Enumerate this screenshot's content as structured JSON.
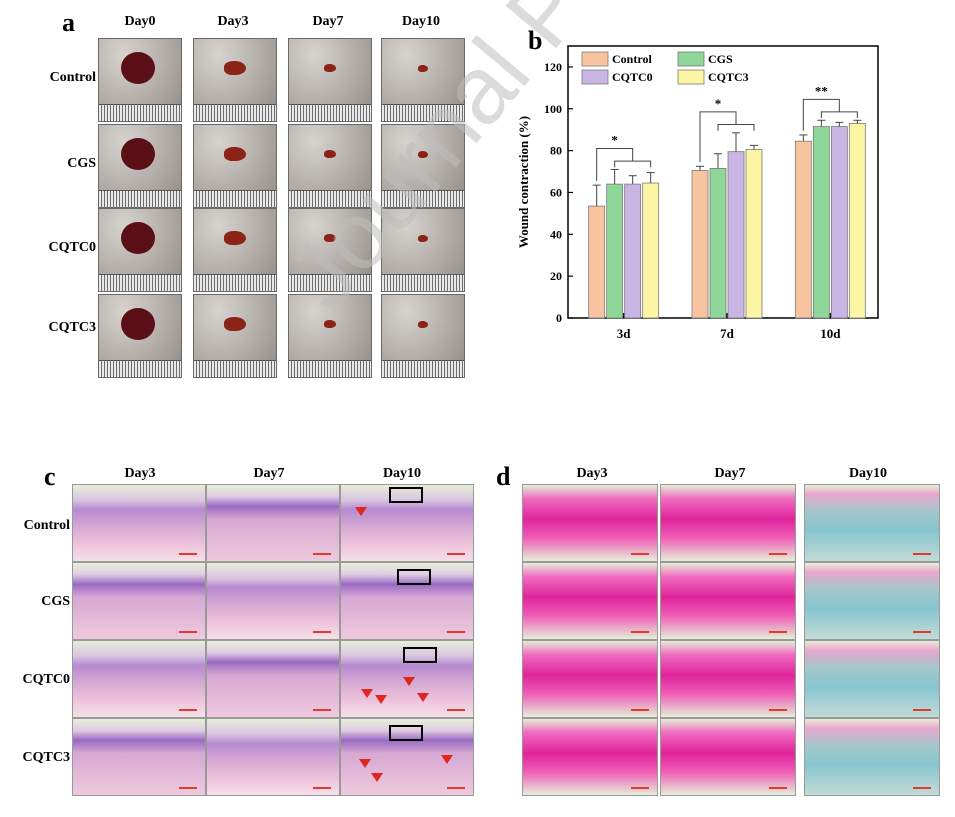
{
  "panel_a": {
    "letter": "a",
    "columns": [
      "Day0",
      "Day3",
      "Day7",
      "Day10"
    ],
    "rows": [
      "Control",
      "CGS",
      "CQTC0",
      "CQTC3"
    ]
  },
  "panel_b": {
    "letter": "b"
  },
  "panel_c": {
    "letter": "c",
    "columns": [
      "Day3",
      "Day7",
      "Day10"
    ],
    "rows": [
      "Control",
      "CGS",
      "CQTC0",
      "CQTC3"
    ]
  },
  "panel_d": {
    "letter": "d",
    "columns": [
      "Day3",
      "Day7",
      "Day10"
    ]
  },
  "watermark": "Journal Pre-proof",
  "colors": {
    "Control": "#f8c49f",
    "CGS": "#8fd699",
    "CQTC0": "#c9b5e3",
    "CQTC3": "#fcf5a3"
  },
  "chart_data": {
    "type": "bar",
    "categories": [
      "3d",
      "7d",
      "10d"
    ],
    "series": [
      {
        "name": "Control",
        "values": [
          53.5,
          70.5,
          84.5
        ],
        "errors": [
          10,
          2,
          3
        ]
      },
      {
        "name": "CGS",
        "values": [
          64.0,
          71.5,
          91.5
        ],
        "errors": [
          7,
          7,
          3
        ]
      },
      {
        "name": "CQTC0",
        "values": [
          64.0,
          79.5,
          91.5
        ],
        "errors": [
          4,
          9,
          2
        ]
      },
      {
        "name": "CQTC3",
        "values": [
          64.5,
          80.5,
          93.0
        ],
        "errors": [
          5,
          2,
          1.5
        ]
      }
    ],
    "ylabel": "Wound contraction (%)",
    "xlabel": "",
    "ylim": [
      0,
      130
    ],
    "yticks": [
      0,
      20,
      40,
      60,
      80,
      100,
      120
    ],
    "legend_placement": "top-left",
    "grid": false,
    "significance": [
      "*",
      "*",
      "**"
    ]
  }
}
